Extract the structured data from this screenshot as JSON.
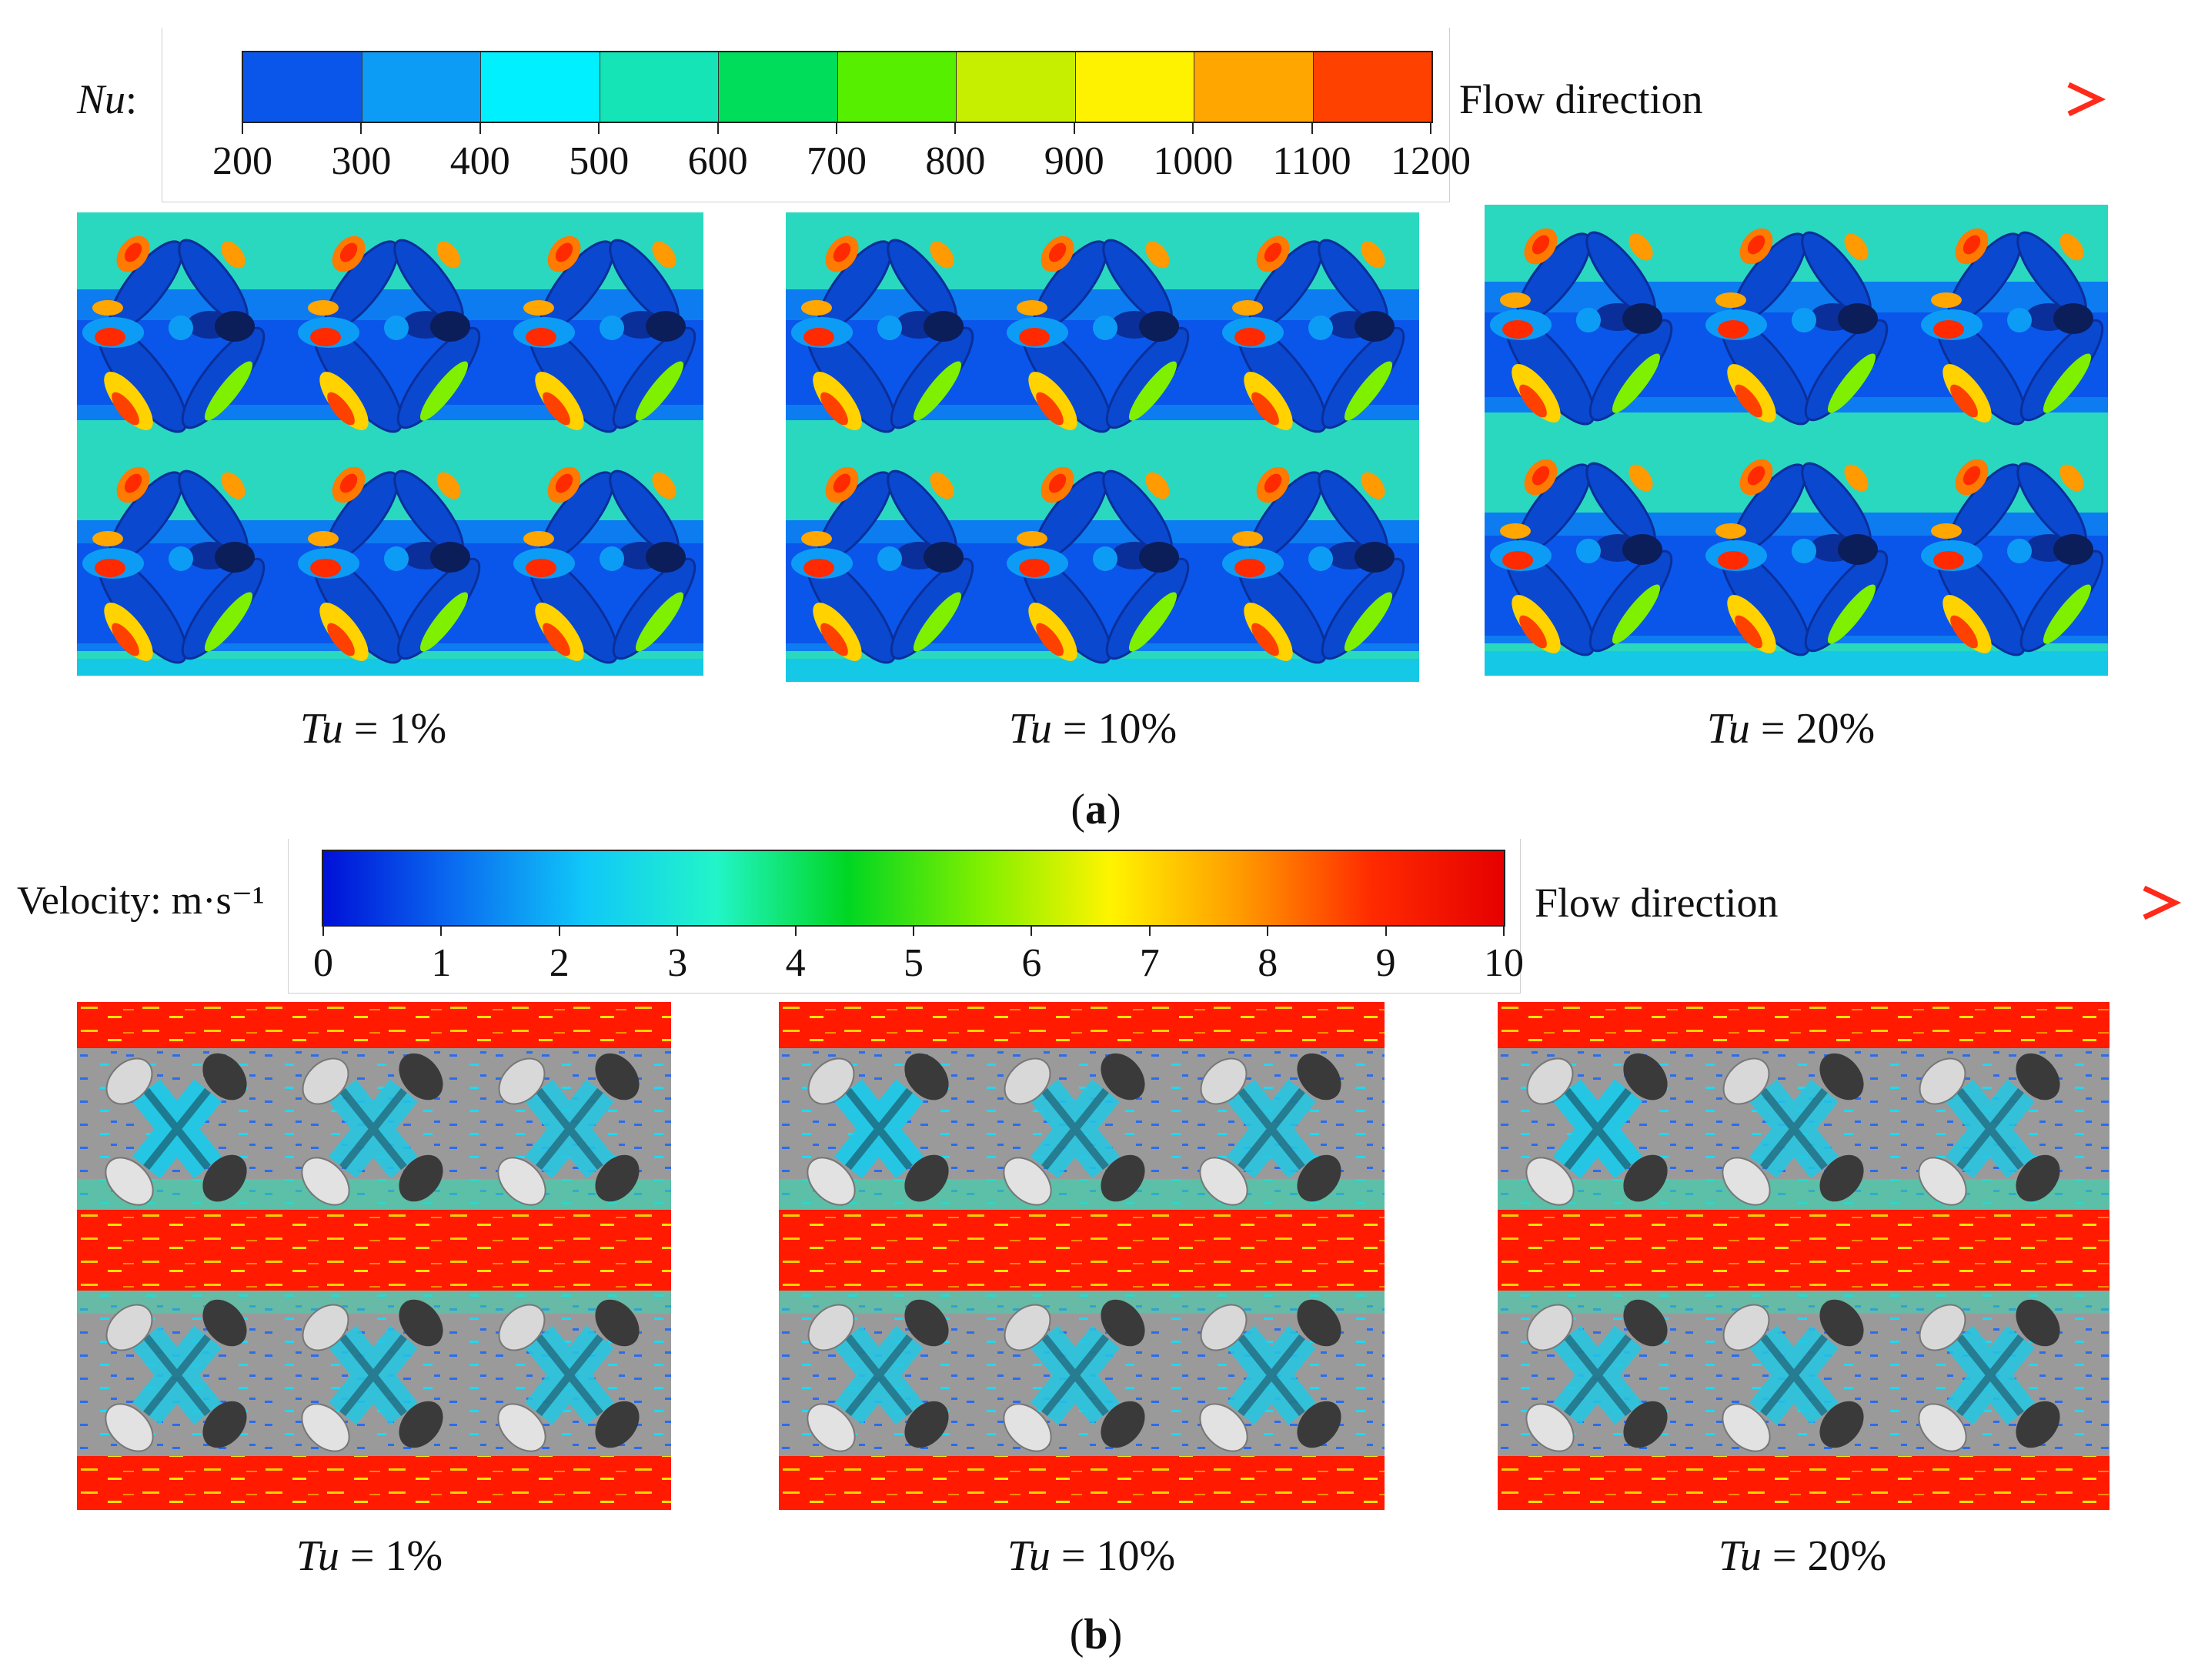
{
  "panel_a": {
    "colorbar": {
      "label_var": "Nu",
      "label_colon": ":",
      "ticks": [
        "200",
        "300",
        "400",
        "500",
        "600",
        "700",
        "800",
        "900",
        "1000",
        "1100",
        "1200"
      ],
      "colors": [
        "#0a56ea",
        "#0d9cf5",
        "#00f0ff",
        "#14e4b6",
        "#00dd5a",
        "#56ef00",
        "#c6ef00",
        "#fff200",
        "#ffa600",
        "#ff4100"
      ]
    },
    "flow_label": "Flow direction",
    "captions": [
      {
        "var": "Tu",
        "text": " = 1%"
      },
      {
        "var": "Tu",
        "text": " = 10%"
      },
      {
        "var": "Tu",
        "text": " = 20%"
      }
    ],
    "sub_label": "(a)",
    "sub_letter": "a"
  },
  "panel_b": {
    "colorbar": {
      "label": "Velocity: m·s⁻¹",
      "ticks": [
        "0",
        "1",
        "2",
        "3",
        "4",
        "5",
        "6",
        "7",
        "8",
        "9",
        "10"
      ],
      "gradient": [
        "#0010d8",
        "#0a6cf0",
        "#10c8f8",
        "#22f5c8",
        "#00d622",
        "#7eef00",
        "#fff400",
        "#ff9a00",
        "#ff2a00",
        "#e60000"
      ]
    },
    "flow_label": "Flow direction",
    "captions": [
      {
        "var": "Tu",
        "text": " = 1%"
      },
      {
        "var": "Tu",
        "text": " = 10%"
      },
      {
        "var": "Tu",
        "text": " = 20%"
      }
    ],
    "sub_label": "(b)",
    "sub_letter": "b"
  },
  "colors": {
    "arrow_start": "#1e9a57",
    "arrow_end": "#ff2a1a",
    "nu_background": "#2ad8c0",
    "vel_hot": "#ff1a00",
    "vel_grey": "#9a9a9a"
  }
}
